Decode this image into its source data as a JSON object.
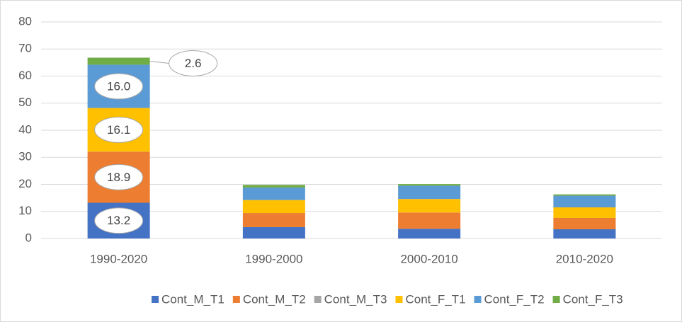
{
  "chart_data": {
    "type": "stacked_bar",
    "categories": [
      "1990-2020",
      "1990-2000",
      "2000-2010",
      "2010-2020"
    ],
    "series": [
      {
        "name": "Cont_M_T1",
        "color": "#4472c4",
        "values": [
          13.2,
          4.2,
          3.6,
          3.4
        ]
      },
      {
        "name": "Cont_M_T2",
        "color": "#ed7d31",
        "values": [
          18.9,
          5.2,
          6.0,
          4.2
        ]
      },
      {
        "name": "Cont_M_T3",
        "color": "#a5a5a5",
        "values": [
          0,
          0,
          0,
          0
        ]
      },
      {
        "name": "Cont_F_T1",
        "color": "#ffc000",
        "values": [
          16.1,
          4.8,
          5.0,
          3.9
        ]
      },
      {
        "name": "Cont_F_T2",
        "color": "#5b9bd5",
        "values": [
          16.0,
          4.6,
          4.9,
          4.3
        ],
        "value_labels": [
          "16.0",
          null,
          null,
          null
        ]
      },
      {
        "name": "Cont_F_T3",
        "color": "#70ad47",
        "values": [
          2.6,
          1.0,
          0.6,
          0.5
        ]
      }
    ],
    "labeled_categories": [
      0
    ],
    "ylim": [
      0,
      80
    ],
    "yticks": [
      0,
      10,
      20,
      30,
      40,
      50,
      60,
      70,
      80
    ],
    "grid": true,
    "legend": "bottom"
  }
}
